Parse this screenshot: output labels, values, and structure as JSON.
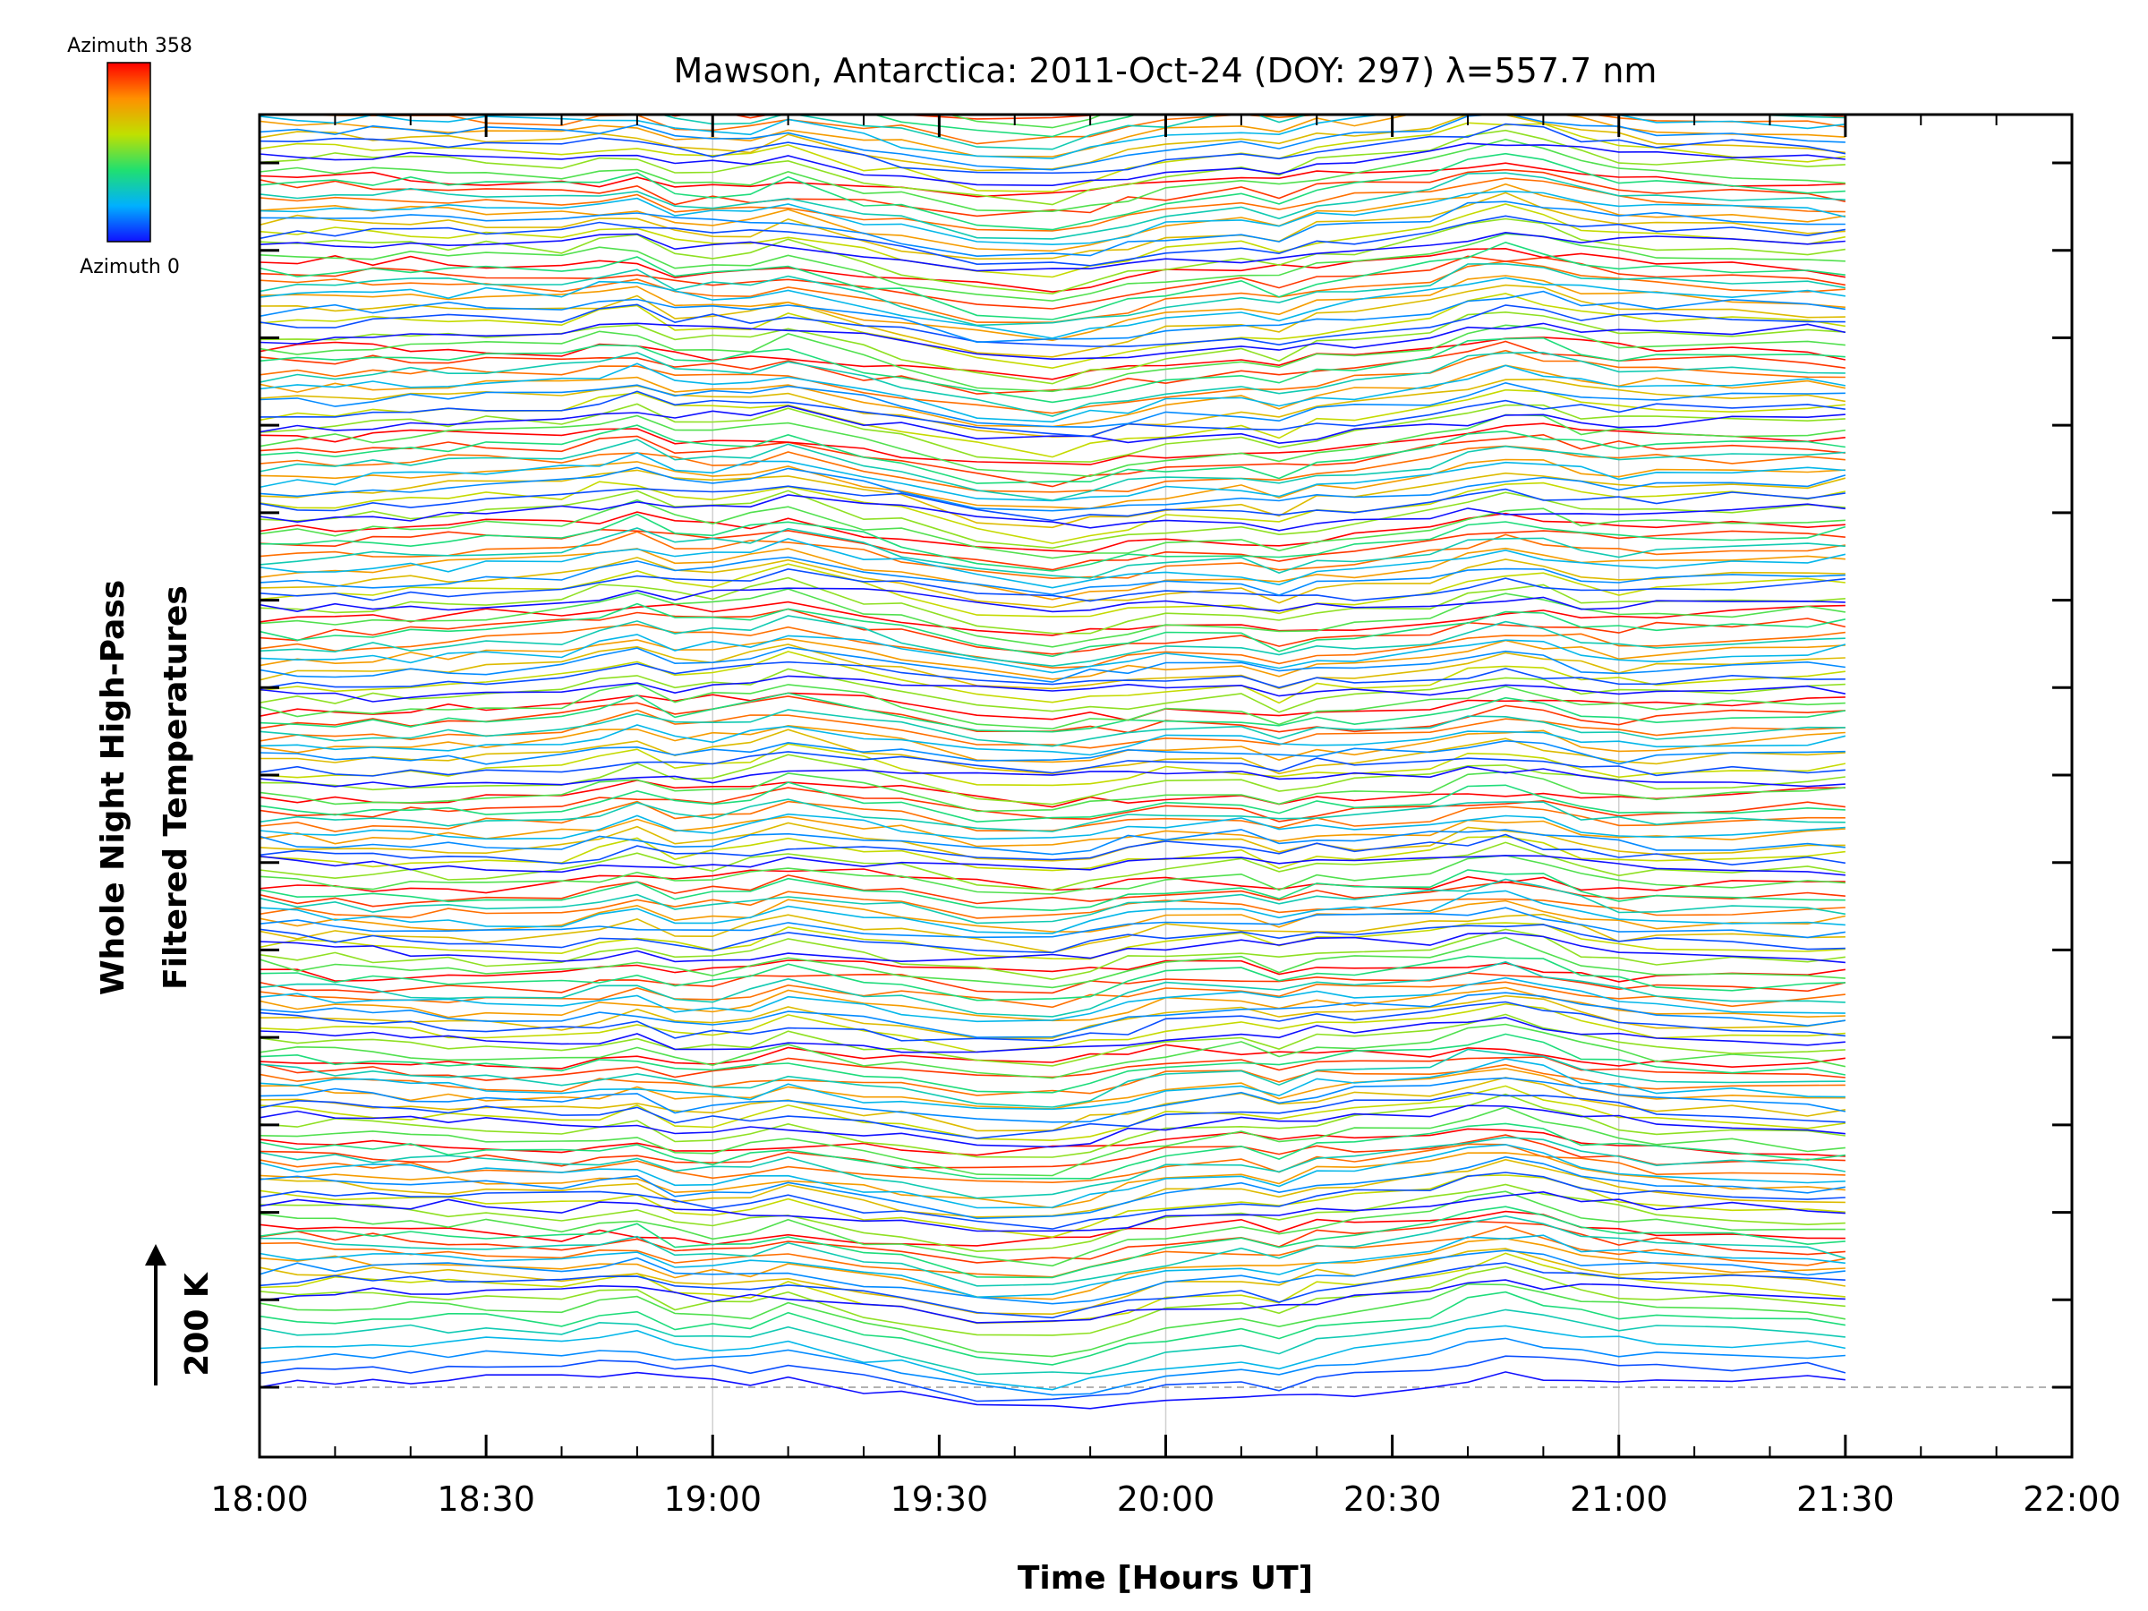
{
  "chart_data": {
    "type": "line",
    "title": "Mawson, Antarctica: 2011-Oct-24 (DOY: 297) λ=557.7 nm",
    "xlabel": "Time [Hours UT]",
    "ylabel_line1": "Whole Night High-Pass",
    "ylabel_line2": "Filtered Temperatures",
    "scale_label": "200 K",
    "scale_value_K": 200,
    "colorbar": {
      "top_label": "Azimuth  358",
      "bottom_label": "Azimuth  0",
      "azimuth_min": 0,
      "azimuth_max": 358,
      "colors": [
        "#1010ff",
        "#00b0ff",
        "#20e070",
        "#c0e000",
        "#ff9000",
        "#ff0000"
      ]
    },
    "x_tick_labels": [
      "18:00",
      "18:30",
      "19:00",
      "19:30",
      "20:00",
      "20:30",
      "21:00",
      "21:30",
      "22:00"
    ],
    "xlim": [
      "18:00",
      "22:00"
    ],
    "x_gridlines": [
      "19:00",
      "20:00",
      "21:00"
    ],
    "y_tick_count": 15,
    "baseline_dashed": true,
    "n_groups": 15,
    "data_end": "21:30"
  }
}
